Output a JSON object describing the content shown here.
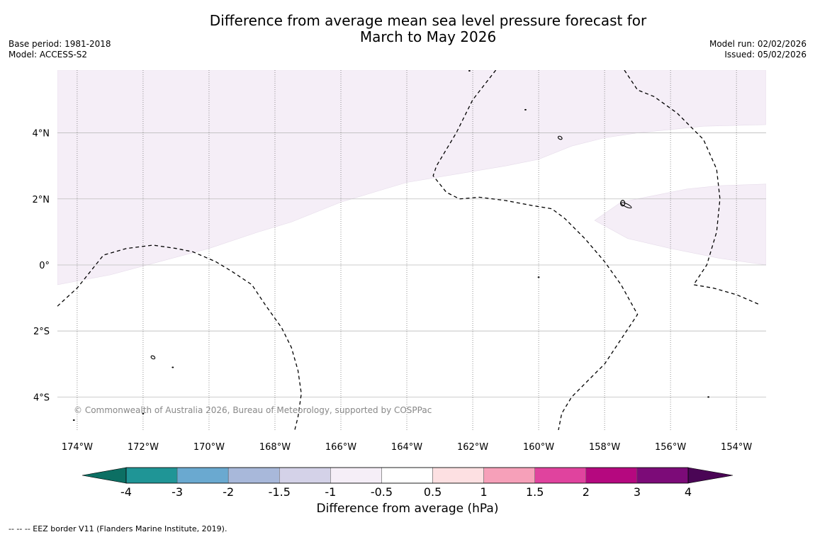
{
  "title": {
    "line1": "Difference from average mean sea level pressure forecast for",
    "line2": "March to May 2026"
  },
  "meta_left": {
    "base_period": "Base period: 1981-2018",
    "model": "Model: ACCESS-S2"
  },
  "meta_right": {
    "model_run": "Model run: 02/02/2026",
    "issued": "Issued: 05/02/2026"
  },
  "copyright": "© Commonwealth of Australia 2026, Bureau of Meteorology, supported by COSPPac",
  "footer_note": "-- -- -- EEZ border V11 (Flanders Marine Institute, 2019).",
  "colors": {
    "neg_4_below": "#0c6f63",
    "neg_3_4": "#1f9596",
    "neg_2_3": "#6aa9d0",
    "neg_15_2": "#a8b8da",
    "neg_1_15": "#d4d2e8",
    "neg_05_1": "#f5eef7",
    "neutral": "#ffffff",
    "pos_05_1": "#fde0e2",
    "pos_1_15": "#f6a0b9",
    "pos_15_2": "#e0439e",
    "pos_2_3": "#b5087f",
    "pos_3_4": "#7c0b78",
    "pos_4_above": "#4a0555"
  },
  "map": {
    "lon_range": [
      -174.6,
      -153.1
    ],
    "lat_range": [
      -5.0,
      5.9
    ],
    "lon_ticks": [
      {
        "value": -174,
        "label": "174°W"
      },
      {
        "value": -172,
        "label": "172°W"
      },
      {
        "value": -170,
        "label": "170°W"
      },
      {
        "value": -168,
        "label": "168°W"
      },
      {
        "value": -166,
        "label": "166°W"
      },
      {
        "value": -164,
        "label": "164°W"
      },
      {
        "value": -162,
        "label": "162°W"
      },
      {
        "value": -160,
        "label": "160°W"
      },
      {
        "value": -158,
        "label": "158°W"
      },
      {
        "value": -156,
        "label": "156°W"
      },
      {
        "value": -154,
        "label": "154°W"
      }
    ],
    "lat_ticks": [
      {
        "value": 4,
        "label": "4°N"
      },
      {
        "value": 2,
        "label": "2°N"
      },
      {
        "value": 0,
        "label": "0°"
      },
      {
        "value": -2,
        "label": "2°S"
      },
      {
        "value": -4,
        "label": "4°S"
      }
    ],
    "anomaly_regions": [
      {
        "category": "-1 to -0.5",
        "color_key": "neg_05_1",
        "coords": [
          [
            -174.6,
            5.9
          ],
          [
            -153.1,
            5.9
          ],
          [
            -153.1,
            4.25
          ],
          [
            -155.0,
            4.2
          ],
          [
            -157.0,
            4.0
          ],
          [
            -158.0,
            3.85
          ],
          [
            -159.0,
            3.6
          ],
          [
            -160.0,
            3.2
          ],
          [
            -161.0,
            3.0
          ],
          [
            -162.5,
            2.75
          ],
          [
            -164.0,
            2.5
          ],
          [
            -165.0,
            2.2
          ],
          [
            -166.0,
            1.9
          ],
          [
            -167.5,
            1.3
          ],
          [
            -168.5,
            1.0
          ],
          [
            -170.0,
            0.5
          ],
          [
            -171.5,
            0.1
          ],
          [
            -173.0,
            -0.3
          ],
          [
            -174.6,
            -0.6
          ]
        ]
      },
      {
        "category": "-1 to -0.5",
        "color_key": "neg_05_1",
        "coords": [
          [
            -158.3,
            1.35
          ],
          [
            -157.5,
            1.9
          ],
          [
            -156.5,
            2.1
          ],
          [
            -155.5,
            2.3
          ],
          [
            -154.5,
            2.4
          ],
          [
            -153.1,
            2.45
          ],
          [
            -153.1,
            0.0
          ],
          [
            -154.5,
            0.2
          ],
          [
            -156.0,
            0.5
          ],
          [
            -157.3,
            0.8
          ]
        ]
      }
    ],
    "eez_borders": [
      {
        "name": "eez-west",
        "coords": [
          [
            -174.6,
            -1.25
          ],
          [
            -174.0,
            -0.7
          ],
          [
            -173.2,
            0.3
          ],
          [
            -172.5,
            0.5
          ],
          [
            -171.7,
            0.6
          ],
          [
            -171.0,
            0.5
          ],
          [
            -170.5,
            0.4
          ],
          [
            -169.8,
            0.1
          ],
          [
            -169.3,
            -0.2
          ],
          [
            -168.7,
            -0.6
          ],
          [
            -168.3,
            -1.2
          ],
          [
            -167.8,
            -1.9
          ],
          [
            -167.5,
            -2.5
          ],
          [
            -167.3,
            -3.2
          ],
          [
            -167.2,
            -3.9
          ],
          [
            -167.3,
            -4.6
          ],
          [
            -167.4,
            -5.0
          ]
        ]
      },
      {
        "name": "eez-north",
        "coords": [
          [
            -161.3,
            5.9
          ],
          [
            -162.0,
            5.0
          ],
          [
            -162.5,
            4.0
          ],
          [
            -163.1,
            3.0
          ],
          [
            -163.2,
            2.7
          ],
          [
            -162.8,
            2.2
          ],
          [
            -162.4,
            2.0
          ],
          [
            -161.8,
            2.05
          ],
          [
            -161.0,
            1.95
          ],
          [
            -160.2,
            1.8
          ],
          [
            -159.6,
            1.7
          ],
          [
            -159.2,
            1.4
          ],
          [
            -158.6,
            0.8
          ],
          [
            -158.0,
            0.1
          ],
          [
            -157.5,
            -0.6
          ],
          [
            -157.0,
            -1.5
          ],
          [
            -157.4,
            -2.1
          ],
          [
            -158.0,
            -3.0
          ],
          [
            -158.5,
            -3.5
          ],
          [
            -159.0,
            -4.0
          ],
          [
            -159.3,
            -4.5
          ],
          [
            -159.4,
            -5.0
          ]
        ]
      },
      {
        "name": "eez-east",
        "coords": [
          [
            -157.4,
            5.9
          ],
          [
            -157.0,
            5.3
          ],
          [
            -156.5,
            5.1
          ],
          [
            -155.8,
            4.6
          ],
          [
            -155.0,
            3.8
          ],
          [
            -154.6,
            2.9
          ],
          [
            -154.5,
            2.0
          ],
          [
            -154.6,
            1.0
          ],
          [
            -154.9,
            0.0
          ],
          [
            -155.3,
            -0.6
          ],
          [
            -154.7,
            -0.7
          ],
          [
            -154.0,
            -0.9
          ],
          [
            -153.3,
            -1.2
          ]
        ]
      }
    ],
    "islands": [
      {
        "lon": -162.1,
        "lat": 5.88,
        "shape": "dot"
      },
      {
        "lon": -160.4,
        "lat": 4.7,
        "shape": "dot"
      },
      {
        "lon": -159.35,
        "lat": 3.85,
        "shape": "islet"
      },
      {
        "lon": -157.45,
        "lat": 1.85,
        "shape": "atoll"
      },
      {
        "lon": -171.7,
        "lat": -2.8,
        "shape": "islet"
      },
      {
        "lon": -171.1,
        "lat": -3.1,
        "shape": "dot"
      },
      {
        "lon": -172.0,
        "lat": -4.5,
        "shape": "dot"
      },
      {
        "lon": -174.1,
        "lat": -4.7,
        "shape": "dot"
      },
      {
        "lon": -154.85,
        "lat": -4.0,
        "shape": "dot"
      },
      {
        "lon": -160.0,
        "lat": -0.37,
        "shape": "dot"
      }
    ]
  },
  "colorbar": {
    "label": "Difference from average (hPa)",
    "tick_labels": [
      "-4",
      "-3",
      "-2",
      "-1.5",
      "-1",
      "-0.5",
      "0.5",
      "1",
      "1.5",
      "2",
      "3",
      "4"
    ],
    "segment_color_keys": [
      "neg_3_4",
      "neg_2_3",
      "neg_15_2",
      "neg_1_15",
      "neg_05_1",
      "neutral",
      "pos_05_1",
      "pos_1_15",
      "pos_15_2",
      "pos_2_3",
      "pos_3_4"
    ],
    "under_color_key": "neg_4_below",
    "over_color_key": "pos_4_above"
  }
}
